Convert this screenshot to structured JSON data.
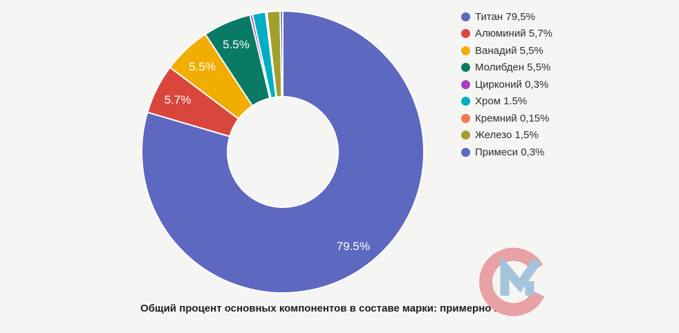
{
  "page": {
    "background": "#f5f5f3"
  },
  "chart_data": {
    "type": "pie",
    "subtype": "donut",
    "title": "",
    "unit": "%",
    "direction": "clockwise",
    "start_angle": "12-oclock",
    "legend_position": "right",
    "inner_radius_ratio": 0.39,
    "slice_label_color": "#ffffff",
    "segments": [
      {
        "name": "Титан",
        "value": 79.5,
        "color": "#5d68c0",
        "slice_label": "79.5%",
        "legend_label": "Титан 79,5%"
      },
      {
        "name": "Алюминий",
        "value": 5.7,
        "color": "#d9473c",
        "slice_label": "5.7%",
        "legend_label": "Алюминий 5,7%"
      },
      {
        "name": "Ванадий",
        "value": 5.5,
        "color": "#f1ad01",
        "slice_label": "5.5%",
        "legend_label": "Ванадий 5,5%"
      },
      {
        "name": "Молибден",
        "value": 5.5,
        "color": "#097a65",
        "slice_label": "5.5%",
        "legend_label": "Молибден 5,5%"
      },
      {
        "name": "Цирконий",
        "value": 0.3,
        "color": "#aa3ec0",
        "slice_label": "",
        "legend_label": "Цирконий 0,3%"
      },
      {
        "name": "Хром",
        "value": 1.5,
        "color": "#00aec4",
        "slice_label": "",
        "legend_label": "Хром 1.5%"
      },
      {
        "name": "Кремний",
        "value": 0.15,
        "color": "#f4764e",
        "slice_label": "",
        "legend_label": "Кремний 0,15%"
      },
      {
        "name": "Железо",
        "value": 1.5,
        "color": "#a0a02a",
        "slice_label": "",
        "legend_label": "Железо 1,5%"
      },
      {
        "name": "Примеси",
        "value": 0.3,
        "color": "#5d68c0",
        "slice_label": "",
        "legend_label": "Примеси 0,3%"
      }
    ]
  },
  "caption": "Общий процент основных компонентов в составе марки: примерно 20,2%",
  "logo": {
    "letters": "СМ",
    "c_color": "#e8a1a5",
    "m_color": "#a4c4da"
  }
}
